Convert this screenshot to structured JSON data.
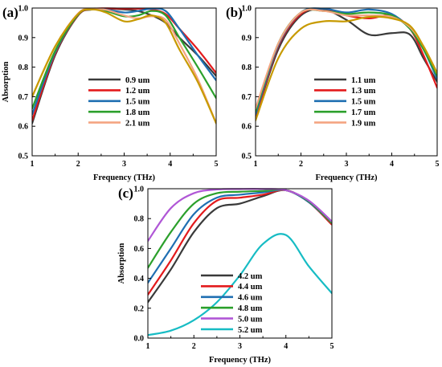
{
  "chart_data": [
    {
      "panel": "(a)",
      "type": "line",
      "xlabel": "Frequency (THz)",
      "ylabel": "Absorption",
      "xlim": [
        1,
        5
      ],
      "ylim": [
        0.5,
        1.0
      ],
      "xticks": [
        "1",
        "2",
        "3",
        "4",
        "5"
      ],
      "yticks": [
        "0.5",
        "0.6",
        "0.7",
        "0.8",
        "0.9",
        "1.0"
      ],
      "grid": false,
      "legend_position": "center",
      "x": [
        1.0,
        1.5,
        2.0,
        2.3,
        2.6,
        3.0,
        3.3,
        3.6,
        3.9,
        4.2,
        4.6,
        5.0
      ],
      "series": [
        {
          "name": "0.9 um",
          "color": "#3a3a3a",
          "values": [
            0.61,
            0.84,
            0.975,
            0.995,
            0.998,
            0.995,
            0.99,
            0.975,
            0.95,
            0.9,
            0.84,
            0.77
          ]
        },
        {
          "name": "1.2 um",
          "color": "#e31a1c",
          "values": [
            0.62,
            0.845,
            0.976,
            0.996,
            0.999,
            0.998,
            0.998,
            0.995,
            0.98,
            0.93,
            0.86,
            0.78
          ]
        },
        {
          "name": "1.5 um",
          "color": "#1f6fb2",
          "values": [
            0.64,
            0.85,
            0.978,
            0.997,
            0.995,
            0.985,
            0.99,
            0.998,
            0.99,
            0.93,
            0.84,
            0.755
          ]
        },
        {
          "name": "1.8 um",
          "color": "#2ca02c",
          "values": [
            0.66,
            0.855,
            0.978,
            0.996,
            0.99,
            0.972,
            0.975,
            0.99,
            0.975,
            0.9,
            0.8,
            0.695
          ]
        },
        {
          "name": "2.1 um",
          "color": "#f4a582",
          "values": [
            0.7,
            0.87,
            0.982,
            0.998,
            0.994,
            0.975,
            0.965,
            0.972,
            0.96,
            0.88,
            0.76,
            0.61
          ]
        },
        {
          "name": "",
          "color": "#c79a00",
          "values": [
            0.7,
            0.87,
            0.98,
            0.995,
            0.985,
            0.955,
            0.962,
            0.975,
            0.95,
            0.86,
            0.75,
            0.61
          ]
        }
      ]
    },
    {
      "panel": "(b)",
      "type": "line",
      "xlabel": "Frequency (THz)",
      "ylabel": "",
      "xlim": [
        1,
        5
      ],
      "ylim": [
        0.5,
        1.0
      ],
      "xticks": [
        "1",
        "2",
        "3",
        "4",
        "5"
      ],
      "yticks": [
        "0.5",
        "0.6",
        "0.7",
        "0.8",
        "0.9",
        "1.0"
      ],
      "grid": false,
      "legend_position": "center",
      "x": [
        1.0,
        1.5,
        2.0,
        2.5,
        3.0,
        3.5,
        4.0,
        4.4,
        4.7,
        5.0
      ],
      "series": [
        {
          "name": "1.1 um",
          "color": "#3a3a3a",
          "values": [
            0.63,
            0.86,
            0.975,
            0.995,
            0.96,
            0.91,
            0.915,
            0.91,
            0.83,
            0.75
          ]
        },
        {
          "name": "1.3 um",
          "color": "#e31a1c",
          "values": [
            0.63,
            0.87,
            0.98,
            0.998,
            0.975,
            0.965,
            0.975,
            0.93,
            0.84,
            0.73
          ]
        },
        {
          "name": "1.5 um",
          "color": "#1f6fb2",
          "values": [
            0.64,
            0.875,
            0.985,
            0.998,
            0.985,
            0.995,
            0.98,
            0.93,
            0.86,
            0.76
          ]
        },
        {
          "name": "1.7 um",
          "color": "#2ca02c",
          "values": [
            0.65,
            0.88,
            0.985,
            0.99,
            0.98,
            0.985,
            0.975,
            0.93,
            0.86,
            0.77
          ]
        },
        {
          "name": "1.9 um",
          "color": "#f4a582",
          "values": [
            0.66,
            0.88,
            0.985,
            0.99,
            0.975,
            0.975,
            0.97,
            0.935,
            0.87,
            0.78
          ]
        },
        {
          "name": "",
          "color": "#c79a00",
          "values": [
            0.62,
            0.83,
            0.93,
            0.955,
            0.955,
            0.97,
            0.965,
            0.94,
            0.87,
            0.78
          ]
        }
      ]
    },
    {
      "panel": "(c)",
      "type": "line",
      "xlabel": "Frequency (THz)",
      "ylabel": "Absorption",
      "xlim": [
        1,
        5
      ],
      "ylim": [
        0.0,
        1.0
      ],
      "xticks": [
        "1",
        "2",
        "3",
        "4",
        "5"
      ],
      "yticks": [
        "0.0",
        "0.2",
        "0.4",
        "0.6",
        "0.8",
        "1.0"
      ],
      "grid": false,
      "legend_position": "bottom-right",
      "x": [
        1.0,
        1.5,
        2.0,
        2.5,
        3.0,
        3.5,
        4.0,
        4.5,
        5.0
      ],
      "series": [
        {
          "name": "4.2 um",
          "color": "#3a3a3a",
          "values": [
            0.24,
            0.46,
            0.71,
            0.87,
            0.9,
            0.95,
            0.99,
            0.91,
            0.76
          ]
        },
        {
          "name": "4.4 um",
          "color": "#e31a1c",
          "values": [
            0.29,
            0.52,
            0.77,
            0.92,
            0.94,
            0.96,
            0.99,
            0.91,
            0.76
          ]
        },
        {
          "name": "4.6 um",
          "color": "#1f6fb2",
          "values": [
            0.37,
            0.6,
            0.83,
            0.94,
            0.96,
            0.975,
            0.99,
            0.91,
            0.77
          ]
        },
        {
          "name": "4.8 um",
          "color": "#2ca02c",
          "values": [
            0.47,
            0.71,
            0.9,
            0.97,
            0.98,
            0.985,
            0.99,
            0.915,
            0.77
          ]
        },
        {
          "name": "5.0 um",
          "color": "#b057d6",
          "values": [
            0.65,
            0.87,
            0.97,
            0.995,
            0.998,
            0.998,
            0.99,
            0.92,
            0.78
          ]
        },
        {
          "name": "5.2 um",
          "color": "#17bcc4",
          "values": [
            0.02,
            0.05,
            0.12,
            0.24,
            0.42,
            0.63,
            0.69,
            0.48,
            0.3
          ]
        }
      ]
    }
  ]
}
